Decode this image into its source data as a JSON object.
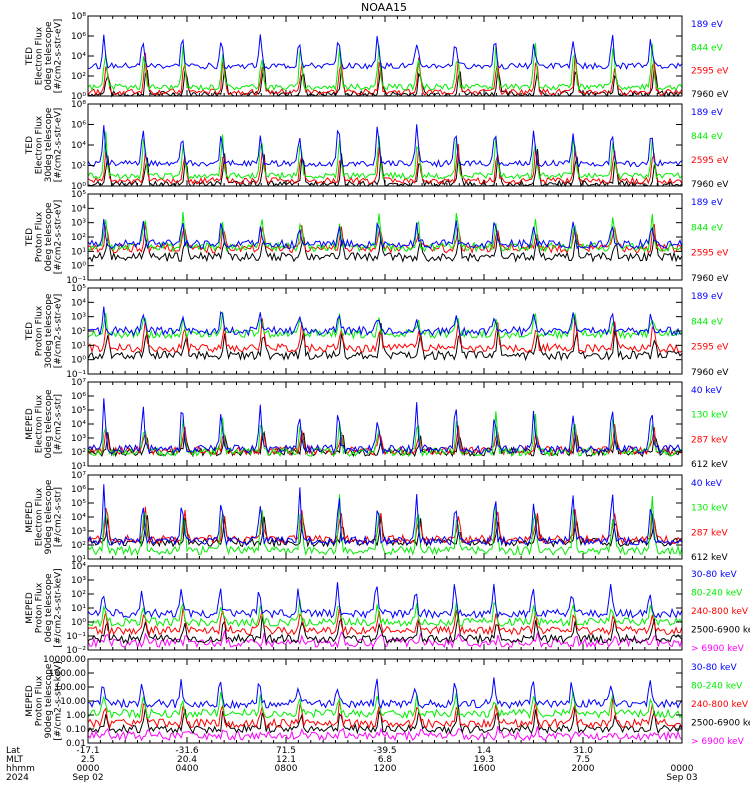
{
  "title": "NOAA15",
  "colors": {
    "black": "#000000",
    "blue": "#0000ff",
    "red": "#ff0000",
    "green": "#00ee00",
    "magenta": "#ff00ff",
    "axis": "#000000"
  },
  "chart_data": [
    {
      "type": "line",
      "ylabel": [
        "TED",
        "Electron Flux",
        "0deg telescope",
        "[#/cm2-s-str-eV]"
      ],
      "ylog": true,
      "yticks": [
        {
          "v": 0,
          "l": "10⁰"
        },
        {
          "v": 2,
          "l": "10²"
        },
        {
          "v": 4,
          "l": "10⁴"
        },
        {
          "v": 6,
          "l": "10⁶"
        },
        {
          "v": 8,
          "l": "10⁸"
        }
      ],
      "ylim": [
        0,
        8
      ],
      "series": [
        {
          "name": "7960 eV",
          "color": "black",
          "base": 0.2,
          "peak": 3.5
        },
        {
          "name": "2595 eV",
          "color": "red",
          "base": 0.4,
          "peak": 4.5
        },
        {
          "name": "844 eV",
          "color": "green",
          "base": 0.9,
          "peak": 5.5
        },
        {
          "name": "189 eV",
          "color": "blue",
          "base": 3.0,
          "peak": 6.5
        }
      ]
    },
    {
      "type": "line",
      "ylabel": [
        "TED",
        "Electron Flux",
        "30deg telescope",
        "[#/cm2-s-str-eV]"
      ],
      "ylog": true,
      "yticks": [
        {
          "v": 0,
          "l": "10⁰"
        },
        {
          "v": 2,
          "l": "10²"
        },
        {
          "v": 4,
          "l": "10⁴"
        },
        {
          "v": 6,
          "l": "10⁶"
        },
        {
          "v": 8,
          "l": "10⁸"
        }
      ],
      "ylim": [
        0,
        8
      ],
      "series": [
        {
          "name": "7960 eV",
          "color": "black",
          "base": 0.2,
          "peak": 3.5
        },
        {
          "name": "2595 eV",
          "color": "red",
          "base": 0.5,
          "peak": 4.5
        },
        {
          "name": "844 eV",
          "color": "green",
          "base": 1.0,
          "peak": 5.5
        },
        {
          "name": "189 eV",
          "color": "blue",
          "base": 2.2,
          "peak": 6.3
        }
      ]
    },
    {
      "type": "line",
      "ylabel": [
        "TED",
        "Proton Flux",
        "0deg telescope",
        "[#/cm2-s-str-eV]"
      ],
      "ylog": true,
      "yticks": [
        {
          "v": -1,
          "l": "10⁻¹"
        },
        {
          "v": 0,
          "l": "10⁰"
        },
        {
          "v": 1,
          "l": "10¹"
        },
        {
          "v": 2,
          "l": "10²"
        },
        {
          "v": 3,
          "l": "10³"
        },
        {
          "v": 4,
          "l": "10⁴"
        },
        {
          "v": 5,
          "l": "10⁵"
        }
      ],
      "ylim": [
        -1,
        5
      ],
      "series": [
        {
          "name": "7960 eV",
          "color": "black",
          "base": 0.6,
          "peak": 2.5
        },
        {
          "name": "2595 eV",
          "color": "red",
          "base": 1.2,
          "peak": 3.0
        },
        {
          "name": "844 eV",
          "color": "green",
          "base": 1.3,
          "peak": 3.8
        },
        {
          "name": "189 eV",
          "color": "blue",
          "base": 1.5,
          "peak": 3.2
        }
      ]
    },
    {
      "type": "line",
      "ylabel": [
        "TED",
        "Proton Flux",
        "30deg telescope",
        "[#/cm2-s-str-eV]"
      ],
      "ylog": true,
      "yticks": [
        {
          "v": -1,
          "l": "10⁻¹"
        },
        {
          "v": 0,
          "l": "10⁰"
        },
        {
          "v": 1,
          "l": "10¹"
        },
        {
          "v": 2,
          "l": "10²"
        },
        {
          "v": 3,
          "l": "10³"
        },
        {
          "v": 4,
          "l": "10⁴"
        },
        {
          "v": 5,
          "l": "10⁵"
        }
      ],
      "ylim": [
        -1,
        5
      ],
      "series": [
        {
          "name": "7960 eV",
          "color": "black",
          "base": 0.3,
          "peak": 2.5
        },
        {
          "name": "2595 eV",
          "color": "red",
          "base": 0.8,
          "peak": 3.0
        },
        {
          "name": "844 eV",
          "color": "green",
          "base": 1.8,
          "peak": 3.4
        },
        {
          "name": "189 eV",
          "color": "blue",
          "base": 2.0,
          "peak": 3.6
        }
      ]
    },
    {
      "type": "line",
      "ylabel": [
        "MEPED",
        "Electron Flux",
        "0deg telescope",
        "[#/cm2-s-str]"
      ],
      "ylog": true,
      "yticks": [
        {
          "v": 1,
          "l": "10¹"
        },
        {
          "v": 2,
          "l": "10²"
        },
        {
          "v": 3,
          "l": "10³"
        },
        {
          "v": 4,
          "l": "10⁴"
        },
        {
          "v": 5,
          "l": "10⁵"
        },
        {
          "v": 6,
          "l": "10⁶"
        },
        {
          "v": 7,
          "l": "10⁷"
        }
      ],
      "ylim": [
        1,
        7
      ],
      "series": [
        {
          "name": "612 keV",
          "color": "black",
          "base": 2.0,
          "peak": 3.5
        },
        {
          "name": "287 keV",
          "color": "red",
          "base": 2.1,
          "peak": 4.0
        },
        {
          "name": "130 keV",
          "color": "green",
          "base": 2.0,
          "peak": 4.8
        },
        {
          "name": "40 keV",
          "color": "blue",
          "base": 2.2,
          "peak": 5.8
        }
      ]
    },
    {
      "type": "line",
      "ylabel": [
        "MEPED",
        "Electron Flux",
        "90deg telescope",
        "[#/cm2-s-str]"
      ],
      "ylog": true,
      "yticks": [
        {
          "v": 1,
          "l": "10¹"
        },
        {
          "v": 2,
          "l": "10²"
        },
        {
          "v": 3,
          "l": "10³"
        },
        {
          "v": 4,
          "l": "10⁴"
        },
        {
          "v": 5,
          "l": "10⁵"
        },
        {
          "v": 6,
          "l": "10⁶"
        },
        {
          "v": 7,
          "l": "10⁷"
        }
      ],
      "ylim": [
        1,
        7
      ],
      "series": [
        {
          "name": "612 keV",
          "color": "black",
          "base": 2.2,
          "peak": 4.2
        },
        {
          "name": "287 keV",
          "color": "red",
          "base": 2.4,
          "peak": 5.0
        },
        {
          "name": "130 keV",
          "color": "green",
          "base": 1.6,
          "peak": 5.5
        },
        {
          "name": "40 keV",
          "color": "blue",
          "base": 2.3,
          "peak": 6.2
        }
      ]
    },
    {
      "type": "line",
      "ylabel": [
        "MEPED",
        "Proton Flux",
        "0deg telescope",
        "[#/cm2-s-str-keV]"
      ],
      "ylog": true,
      "yticks": [
        {
          "v": -2,
          "l": "10⁻²"
        },
        {
          "v": -1,
          "l": "10⁻¹"
        },
        {
          "v": 0,
          "l": "10⁰"
        },
        {
          "v": 1,
          "l": "10¹"
        },
        {
          "v": 2,
          "l": "10²"
        },
        {
          "v": 3,
          "l": "10³"
        },
        {
          "v": 4,
          "l": "10⁴"
        }
      ],
      "ylim": [
        -2,
        4
      ],
      "series": [
        {
          "name": "> 6900 keV",
          "color": "magenta",
          "base": -1.5,
          "peak": -0.8
        },
        {
          "name": "2500-6900 keV",
          "color": "black",
          "base": -1.2,
          "peak": 0.5
        },
        {
          "name": "240-800 keV",
          "color": "red",
          "base": -0.6,
          "peak": 1.0
        },
        {
          "name": "80-240 keV",
          "color": "green",
          "base": 0.0,
          "peak": 1.5
        },
        {
          "name": "30-80 keV",
          "color": "blue",
          "base": 0.6,
          "peak": 2.8
        }
      ]
    },
    {
      "type": "line",
      "ylabel": [
        "MEPED",
        "Proton Flux",
        "90deg telescope",
        "[#/cm2-s-str-keV]"
      ],
      "ylog": true,
      "yticks": [
        {
          "v": -2,
          "l": "0.01"
        },
        {
          "v": -1,
          "l": "0.10"
        },
        {
          "v": 0,
          "l": "1.00"
        },
        {
          "v": 1,
          "l": "10.00"
        },
        {
          "v": 2,
          "l": "100.00"
        },
        {
          "v": 3,
          "l": "1000.00"
        },
        {
          "v": 4,
          "l": "10000.00"
        }
      ],
      "ylim": [
        -2,
        4
      ],
      "series": [
        {
          "name": "> 6900 keV",
          "color": "magenta",
          "base": -1.5,
          "peak": -0.9
        },
        {
          "name": "2500-6900 keV",
          "color": "black",
          "base": -1.0,
          "peak": 0.6
        },
        {
          "name": "240-800 keV",
          "color": "red",
          "base": -0.6,
          "peak": 1.2
        },
        {
          "name": "80-240 keV",
          "color": "green",
          "base": 0.1,
          "peak": 1.6
        },
        {
          "name": "30-80 keV",
          "color": "blue",
          "base": 0.8,
          "peak": 2.8
        }
      ]
    }
  ],
  "xaxis": {
    "row_labels": [
      "Lat",
      "MLT",
      "hhmm",
      "2024"
    ],
    "ticks": [
      {
        "lat": "-17.1",
        "mlt": "2.5",
        "hhmm": "0000",
        "date": "Sep 02"
      },
      {
        "lat": "-31.6",
        "mlt": "20.4",
        "hhmm": "0400",
        "date": ""
      },
      {
        "lat": "71.5",
        "mlt": "12.1",
        "hhmm": "0800",
        "date": ""
      },
      {
        "lat": "-39.5",
        "mlt": "6.8",
        "hhmm": "1200",
        "date": ""
      },
      {
        "lat": "1.4",
        "mlt": "19.3",
        "hhmm": "1600",
        "date": ""
      },
      {
        "lat": "31.0",
        "mlt": "7.5",
        "hhmm": "2000",
        "date": ""
      },
      {
        "lat": "",
        "mlt": "",
        "hhmm": "0000",
        "date": "Sep 03"
      }
    ]
  }
}
